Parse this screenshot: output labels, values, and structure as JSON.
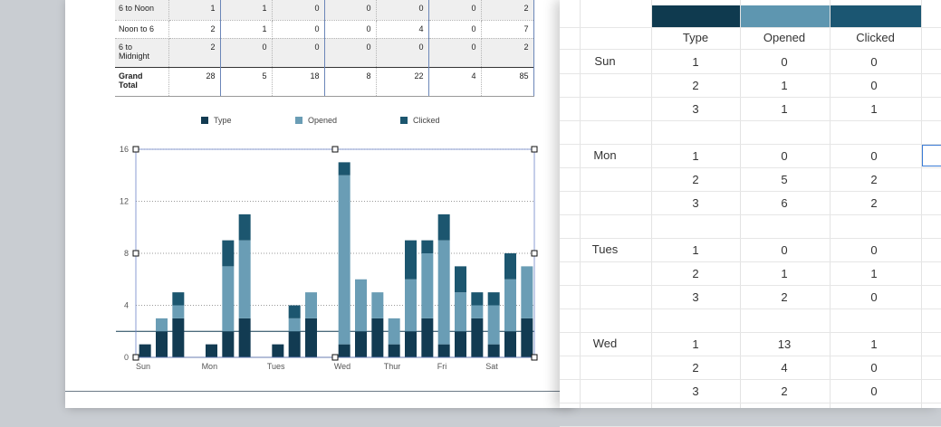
{
  "report": {
    "rows": [
      {
        "label": "6 to Noon",
        "values": [
          "1",
          "1",
          "0",
          "0",
          "0",
          "0",
          "2"
        ],
        "shaded": true
      },
      {
        "label": "Noon to 6",
        "values": [
          "2",
          "1",
          "0",
          "0",
          "4",
          "0",
          "7"
        ],
        "shaded": false
      },
      {
        "label": "6 to Midnight",
        "values": [
          "2",
          "0",
          "0",
          "0",
          "0",
          "0",
          "2"
        ],
        "shaded": true
      },
      {
        "label": "Grand Total",
        "values": [
          "28",
          "5",
          "18",
          "8",
          "22",
          "4",
          "85"
        ],
        "shaded": false,
        "total": true
      }
    ]
  },
  "chart_data": {
    "type": "bar",
    "stacked": true,
    "legend": [
      {
        "name": "Type",
        "color": "#123b52"
      },
      {
        "name": "Opened",
        "color": "#6a9db5"
      },
      {
        "name": "Clicked",
        "color": "#1c566f"
      }
    ],
    "categories": [
      "Sun",
      "Mon",
      "Tues",
      "Wed",
      "Thur",
      "Fri",
      "Sat"
    ],
    "ylim": [
      0,
      16
    ],
    "yticks": [
      0,
      4,
      8,
      12,
      16
    ],
    "reference_line": 2,
    "bars": [
      {
        "type": 1,
        "opened": 0,
        "clicked": 0
      },
      {
        "type": 2,
        "opened": 1,
        "clicked": 0
      },
      {
        "type": 3,
        "opened": 1,
        "clicked": 1
      },
      null,
      {
        "type": 1,
        "opened": 0,
        "clicked": 0
      },
      {
        "type": 2,
        "opened": 5,
        "clicked": 2
      },
      {
        "type": 3,
        "opened": 6,
        "clicked": 2
      },
      null,
      {
        "type": 1,
        "opened": 0,
        "clicked": 0
      },
      {
        "type": 2,
        "opened": 1,
        "clicked": 1
      },
      {
        "type": 3,
        "opened": 2,
        "clicked": 0
      },
      null,
      {
        "type": 1,
        "opened": 13,
        "clicked": 1
      },
      {
        "type": 2,
        "opened": 4,
        "clicked": 0
      },
      {
        "type": 3,
        "opened": 2,
        "clicked": 0
      },
      {
        "type": 1,
        "opened": 2,
        "clicked": 0
      },
      {
        "type": 2,
        "opened": 4,
        "clicked": 3
      },
      {
        "type": 3,
        "opened": 5,
        "clicked": 1
      },
      {
        "type": 1,
        "opened": 8,
        "clicked": 2
      },
      {
        "type": 2,
        "opened": 3,
        "clicked": 2
      },
      {
        "type": 3,
        "opened": 1,
        "clicked": 1
      },
      {
        "type": 1,
        "opened": 3,
        "clicked": 1
      },
      {
        "type": 2,
        "opened": 4,
        "clicked": 2
      },
      {
        "type": 3,
        "opened": 4,
        "clicked": 0
      }
    ],
    "category_bar_index": [
      0,
      4,
      8,
      12,
      15,
      18,
      21
    ]
  },
  "sheet": {
    "headers": [
      "Type",
      "Opened",
      "Clicked"
    ],
    "header_colors": [
      "#0f3a4f",
      "#5e96b0",
      "#1b5672"
    ],
    "groups": [
      {
        "day": "Sun",
        "rows": [
          [
            "1",
            "0",
            "0"
          ],
          [
            "2",
            "1",
            "0"
          ],
          [
            "3",
            "1",
            "1"
          ]
        ]
      },
      {
        "day": "Mon",
        "rows": [
          [
            "1",
            "0",
            "0"
          ],
          [
            "2",
            "5",
            "2"
          ],
          [
            "3",
            "6",
            "2"
          ]
        ]
      },
      {
        "day": "Tues",
        "rows": [
          [
            "1",
            "0",
            "0"
          ],
          [
            "2",
            "1",
            "1"
          ],
          [
            "3",
            "2",
            "0"
          ]
        ]
      },
      {
        "day": "Wed",
        "rows": [
          [
            "1",
            "13",
            "1"
          ],
          [
            "2",
            "4",
            "0"
          ],
          [
            "3",
            "2",
            "0"
          ]
        ]
      }
    ]
  }
}
